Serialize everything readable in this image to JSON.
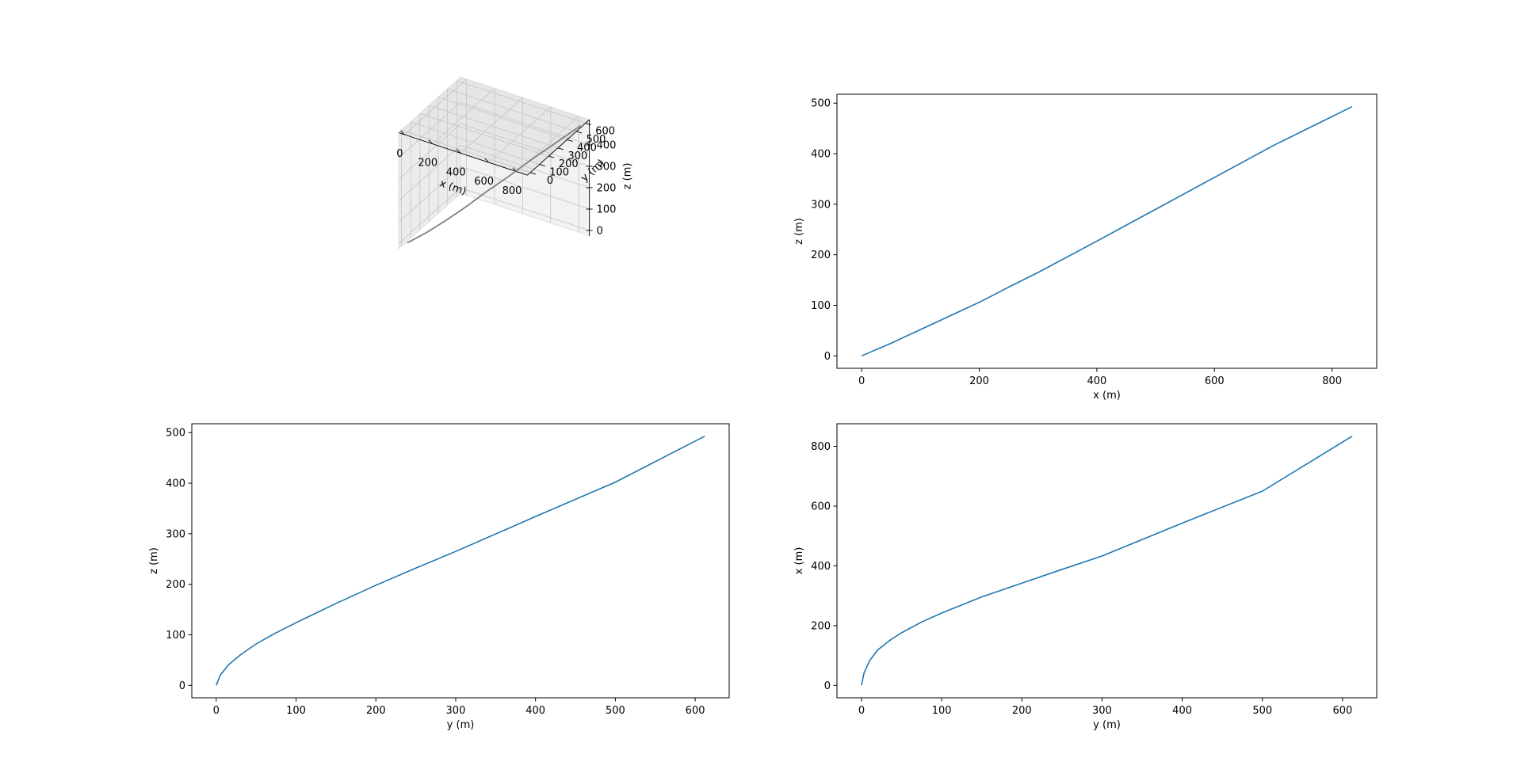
{
  "figure": {
    "line_color": "#1f77b4",
    "line3d_color": "#808080"
  },
  "chart_data": [
    {
      "type": "line3d",
      "title": "",
      "xlabel": "x (m)",
      "ylabel": "y (m)",
      "zlabel": "z (m)",
      "x_ticks": [
        0,
        200,
        400,
        600,
        800
      ],
      "y_ticks": [
        0,
        100,
        200,
        300,
        400,
        500,
        600
      ],
      "z_ticks": [
        0,
        100,
        200,
        300,
        400
      ],
      "z_inverted": true,
      "grid": true,
      "series": [
        {
          "x": [
            0,
            100,
            200,
            300,
            400,
            500,
            600,
            700,
            834
          ],
          "y": [
            0,
            45,
            105,
            170,
            245,
            320,
            400,
            485,
            612
          ],
          "z": [
            0,
            50,
            105,
            165,
            230,
            290,
            355,
            415,
            493
          ]
        }
      ]
    },
    {
      "type": "line",
      "title": "",
      "xlabel": "x (m)",
      "ylabel": "z (m)",
      "xlim": [
        -42,
        876
      ],
      "ylim": [
        -24.6,
        517.6
      ],
      "x_ticks": [
        0,
        200,
        400,
        600,
        800
      ],
      "y_ticks": [
        0,
        100,
        200,
        300,
        400,
        500
      ],
      "series": [
        {
          "x": [
            0,
            50,
            100,
            150,
            200,
            250,
            300,
            400,
            500,
            600,
            700,
            834
          ],
          "y": [
            0,
            25,
            52,
            79,
            106,
            136,
            165,
            227,
            290,
            353,
            416,
            493
          ]
        }
      ]
    },
    {
      "type": "line",
      "title": "",
      "xlabel": "y (m)",
      "ylabel": "z (m)",
      "xlim": [
        -30.6,
        642.6
      ],
      "ylim": [
        -24.6,
        517.6
      ],
      "x_ticks": [
        0,
        100,
        200,
        300,
        400,
        500,
        600
      ],
      "y_ticks": [
        0,
        100,
        200,
        300,
        400,
        500
      ],
      "series": [
        {
          "x": [
            0,
            5,
            15,
            30,
            50,
            75,
            100,
            150,
            200,
            250,
            300,
            400,
            500,
            612
          ],
          "y": [
            0,
            20,
            40,
            60,
            82,
            104,
            124,
            162,
            198,
            232,
            265,
            334,
            402,
            493
          ]
        }
      ]
    },
    {
      "type": "line",
      "title": "",
      "xlabel": "y (m)",
      "ylabel": "x (m)",
      "xlim": [
        -30.6,
        642.6
      ],
      "ylim": [
        -41.7,
        875.7
      ],
      "x_ticks": [
        0,
        100,
        200,
        300,
        400,
        500,
        600
      ],
      "y_ticks": [
        0,
        200,
        400,
        600,
        800
      ],
      "series": [
        {
          "x": [
            0,
            3,
            10,
            20,
            35,
            50,
            75,
            100,
            150,
            200,
            250,
            300,
            400,
            500,
            612
          ],
          "y": [
            0,
            40,
            82,
            118,
            150,
            176,
            212,
            242,
            296,
            342,
            388,
            433,
            543,
            650,
            834
          ]
        }
      ]
    }
  ]
}
